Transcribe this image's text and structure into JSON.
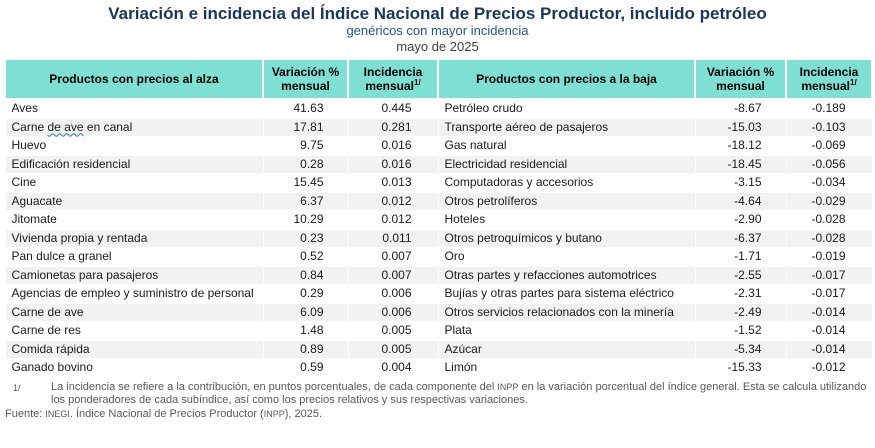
{
  "colors": {
    "title_navy": "#17375E",
    "subtitle_blue": "#1F5582",
    "period_gray": "#404040",
    "header_teal": "#7EE0D2",
    "row_stripe_gray": "#F2F2F2",
    "footnote_gray": "#595959",
    "spellcheck_underline_blue": "#2E75B6"
  },
  "chart_data": {
    "type": "table",
    "title": "Variación e incidencia del Índice Nacional de Precios Productor, incluido petróleo",
    "subtitle": "genéricos con mayor incidencia",
    "period": "mayo de 2025",
    "headers": [
      {
        "label": "Productos con precios al alza"
      },
      {
        "label": "Variación % mensual"
      },
      {
        "label": "Incidencia mensual",
        "sup": "1/"
      },
      {
        "label": "Productos con precios a la baja"
      },
      {
        "label": "Variación % mensual"
      },
      {
        "label": "Incidencia mensual",
        "sup": "1/"
      }
    ],
    "rows": [
      {
        "alza": "Aves",
        "alza_var": "41.63",
        "alza_inc": "0.445",
        "baja": "Petróleo crudo",
        "baja_var": "-8.67",
        "baja_inc": "-0.189"
      },
      {
        "alza": "Carne de ave en canal",
        "alza_squiggle": "de ave",
        "alza_var": "17.81",
        "alza_inc": "0.281",
        "baja": "Transporte aéreo de pasajeros",
        "baja_var": "-15.03",
        "baja_inc": "-0.103"
      },
      {
        "alza": "Huevo",
        "alza_var": "9.75",
        "alza_inc": "0.016",
        "baja": "Gas natural",
        "baja_var": "-18.12",
        "baja_inc": "-0.069"
      },
      {
        "alza": "Edificación residencial",
        "alza_var": "0.28",
        "alza_inc": "0.016",
        "baja": "Electricidad residencial",
        "baja_var": "-18.45",
        "baja_inc": "-0.056"
      },
      {
        "alza": "Cine",
        "alza_var": "15.45",
        "alza_inc": "0.013",
        "baja": "Computadoras y accesorios",
        "baja_var": "-3.15",
        "baja_inc": "-0.034"
      },
      {
        "alza": "Aguacate",
        "alza_var": "6.37",
        "alza_inc": "0.012",
        "baja": "Otros petrolíferos",
        "baja_var": "-4.64",
        "baja_inc": "-0.029"
      },
      {
        "alza": "Jitomate",
        "alza_var": "10.29",
        "alza_inc": "0.012",
        "baja": "Hoteles",
        "baja_var": "-2.90",
        "baja_inc": "-0.028"
      },
      {
        "alza": "Vivienda propia y rentada",
        "alza_var": "0.23",
        "alza_inc": "0.011",
        "baja": "Otros petroquímicos y butano",
        "baja_var": "-6.37",
        "baja_inc": "-0.028"
      },
      {
        "alza": "Pan dulce a granel",
        "alza_var": "0.52",
        "alza_inc": "0.007",
        "baja": "Oro",
        "baja_var": "-1.71",
        "baja_inc": "-0.019"
      },
      {
        "alza": "Camionetas para pasajeros",
        "alza_var": "0.84",
        "alza_inc": "0.007",
        "baja": "Otras partes y refacciones automotrices",
        "baja_var": "-2.55",
        "baja_inc": "-0.017"
      },
      {
        "alza": "Agencias de empleo y suministro de personal",
        "alza_var": "0.29",
        "alza_inc": "0.006",
        "baja": "Bujías y otras partes para sistema eléctrico",
        "baja_var": "-2.31",
        "baja_inc": "-0.017"
      },
      {
        "alza": "Carne de ave",
        "alza_var": "6.09",
        "alza_inc": "0.006",
        "baja": "Otros servicios relacionados con la minería",
        "baja_var": "-2.49",
        "baja_inc": "-0.014"
      },
      {
        "alza": "Carne de res",
        "alza_var": "1.48",
        "alza_inc": "0.005",
        "baja": "Plata",
        "baja_var": "-1.52",
        "baja_inc": "-0.014"
      },
      {
        "alza": "Comida rápida",
        "alza_var": "0.89",
        "alza_inc": "0.005",
        "baja": "Azúcar",
        "baja_var": "-5.34",
        "baja_inc": "-0.014"
      },
      {
        "alza": "Ganado bovino",
        "alza_var": "0.59",
        "alza_inc": "0.004",
        "baja": "Limón",
        "baja_var": "-15.33",
        "baja_inc": "-0.012"
      }
    ]
  },
  "footnote": {
    "marker": "1/",
    "text": "La incidencia se refiere a la contribución, en puntos porcentuales, de cada componente del INPP en la variación porcentual del índice general. Esta se calcula utilizando los ponderadores de cada subíndice, así como los precios relativos y sus respectivas variaciones.",
    "source": "Fuente: INEGI. Índice Nacional de Precios Productor (INPP), 2025."
  }
}
